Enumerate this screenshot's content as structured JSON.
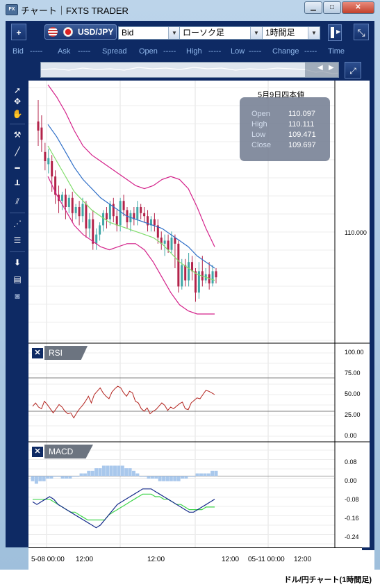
{
  "window": {
    "title": "チャート｜FXTS TRADER",
    "icon": "FX",
    "min_icon": "▁",
    "max_icon": "□",
    "close_icon": "✕"
  },
  "toolbar": {
    "add_label": "+",
    "pair": "USD/JPY",
    "price_type": "Bid",
    "chart_type": "ローソク足",
    "timeframe": "1時間足",
    "detach_icon": "⤡"
  },
  "quote_bar": {
    "bid_label": "Bid",
    "bid_value": "-----",
    "ask_label": "Ask",
    "ask_value": "-----",
    "spread_label": "Spread",
    "open_label": "Open",
    "open_value": "-----",
    "high_label": "High",
    "high_value": "-----",
    "low_label": "Low",
    "low_value": "-----",
    "change_label": "Change",
    "change_value": "-----",
    "time_label": "Time"
  },
  "main_chart": {
    "date_label": "5月9日四本値",
    "ohlc": {
      "open_label": "Open",
      "open": "110.097",
      "high_label": "High",
      "high": "110.111",
      "low_label": "Low",
      "low": "109.471",
      "close_label": "Close",
      "close": "109.697"
    },
    "y_label": "110.000"
  },
  "rsi_panel": {
    "label": "RSI",
    "close_icon": "✕",
    "ticks": [
      "100.00",
      "75.00",
      "50.00",
      "25.00",
      "0.00"
    ]
  },
  "macd_panel": {
    "label": "MACD",
    "close_icon": "✕",
    "ticks": [
      "0.08",
      "0.00",
      "-0.08",
      "-0.16",
      "-0.24"
    ]
  },
  "x_axis": {
    "ticks": [
      "5-08 00:00",
      "12:00",
      "12:00",
      "12:00",
      "05-11 00:00",
      "12:00"
    ]
  },
  "footer": "ドル/円チャート(1時間足)",
  "chart_data": [
    {
      "type": "candlestick",
      "panel": "price",
      "y_tick_label": "110.000",
      "candles": [
        [
          0.46,
          0.4,
          0.6,
          0.3
        ],
        [
          0.42,
          0.34,
          0.5,
          0.26
        ],
        [
          0.26,
          0.2,
          0.32,
          0.14
        ],
        [
          0.18,
          0.22,
          0.28,
          0.12
        ],
        [
          0.2,
          0.1,
          0.24,
          0.0
        ],
        [
          0.1,
          -0.02,
          0.14,
          -0.08
        ],
        [
          -0.02,
          -0.06,
          0.04,
          -0.14
        ],
        [
          -0.06,
          -0.02,
          0.0,
          -0.12
        ],
        [
          -0.02,
          -0.1,
          0.02,
          -0.18
        ],
        [
          -0.1,
          -0.04,
          -0.02,
          -0.14
        ],
        [
          -0.04,
          -0.14,
          0.0,
          -0.2
        ],
        [
          -0.14,
          -0.1,
          -0.08,
          -0.18
        ],
        [
          -0.1,
          -0.16,
          -0.06,
          -0.22
        ],
        [
          -0.16,
          -0.08,
          -0.04,
          -0.2
        ],
        [
          -0.08,
          -0.24,
          -0.06,
          -0.3
        ],
        [
          -0.24,
          -0.18,
          -0.14,
          -0.3
        ],
        [
          -0.18,
          -0.34,
          -0.12,
          -0.38
        ],
        [
          -0.34,
          -0.28,
          -0.24,
          -0.38
        ],
        [
          -0.28,
          -0.22,
          -0.2,
          -0.32
        ],
        [
          -0.22,
          -0.14,
          -0.12,
          -0.26
        ],
        [
          -0.14,
          -0.18,
          -0.1,
          -0.24
        ],
        [
          -0.18,
          -0.08,
          -0.06,
          -0.22
        ],
        [
          -0.08,
          -0.16,
          -0.04,
          -0.2
        ],
        [
          -0.16,
          -0.22,
          -0.12,
          -0.26
        ],
        [
          -0.22,
          -0.06,
          -0.04,
          -0.26
        ],
        [
          -0.06,
          -0.12,
          -0.02,
          -0.16
        ],
        [
          -0.12,
          -0.2,
          -0.1,
          -0.24
        ],
        [
          -0.2,
          -0.14,
          -0.12,
          -0.26
        ],
        [
          -0.14,
          -0.18,
          -0.1,
          -0.22
        ],
        [
          -0.18,
          -0.1,
          -0.06,
          -0.22
        ],
        [
          -0.1,
          -0.14,
          -0.08,
          -0.18
        ],
        [
          -0.14,
          -0.16,
          -0.1,
          -0.2
        ],
        [
          -0.16,
          -0.22,
          -0.12,
          -0.26
        ],
        [
          -0.22,
          -0.18,
          -0.16,
          -0.26
        ],
        [
          -0.18,
          -0.22,
          -0.14,
          -0.26
        ],
        [
          -0.22,
          -0.3,
          -0.18,
          -0.34
        ],
        [
          -0.3,
          -0.34,
          -0.26,
          -0.38
        ],
        [
          -0.34,
          -0.32,
          -0.28,
          -0.42
        ],
        [
          -0.32,
          -0.38,
          -0.28,
          -0.4
        ],
        [
          -0.38,
          -0.3,
          -0.26,
          -0.4
        ],
        [
          -0.3,
          -0.34,
          -0.28,
          -0.5
        ],
        [
          -0.34,
          -0.62,
          -0.32,
          -0.66
        ],
        [
          -0.62,
          -0.48,
          -0.44,
          -0.64
        ],
        [
          -0.48,
          -0.58,
          -0.44,
          -0.62
        ],
        [
          -0.58,
          -0.46,
          -0.4,
          -0.62
        ],
        [
          -0.46,
          -0.52,
          -0.42,
          -0.58
        ],
        [
          -0.52,
          -0.66,
          -0.5,
          -0.72
        ],
        [
          -0.66,
          -0.52,
          -0.46,
          -0.7
        ],
        [
          -0.52,
          -0.58,
          -0.42,
          -0.62
        ],
        [
          -0.58,
          -0.54,
          -0.5,
          -0.6
        ],
        [
          -0.54,
          -0.6,
          -0.46,
          -0.64
        ],
        [
          -0.6,
          -0.52,
          -0.48,
          -0.62
        ],
        [
          -0.52,
          -0.56,
          -0.5,
          -0.6
        ]
      ],
      "bands": {
        "upper": [
          0.7,
          0.62,
          0.52,
          0.4,
          0.3,
          0.24,
          0.2,
          0.16,
          0.12,
          0.08,
          0.04,
          0.02,
          0.04,
          0.08,
          0.1,
          0.08,
          0.02,
          -0.1,
          -0.24,
          -0.36
        ],
        "middle": [
          0.44,
          0.36,
          0.26,
          0.16,
          0.08,
          0.02,
          -0.04,
          -0.08,
          -0.12,
          -0.16,
          -0.18,
          -0.2,
          -0.22,
          -0.24,
          -0.28,
          -0.32,
          -0.36,
          -0.42,
          -0.46,
          -0.5
        ],
        "lower_inner": [
          0.3,
          0.2,
          0.1,
          0.0,
          -0.06,
          -0.12,
          -0.16,
          -0.2,
          -0.22,
          -0.24,
          -0.26,
          -0.28,
          -0.3,
          -0.34,
          -0.4,
          -0.46,
          -0.5,
          -0.54,
          -0.56,
          -0.58
        ],
        "lower": [
          0.1,
          -0.02,
          -0.12,
          -0.22,
          -0.28,
          -0.32,
          -0.36,
          -0.38,
          -0.36,
          -0.34,
          -0.34,
          -0.38,
          -0.46,
          -0.56,
          -0.66,
          -0.74,
          -0.78,
          -0.8,
          -0.8,
          -0.8
        ]
      }
    },
    {
      "type": "line",
      "panel": "RSI",
      "ylim": [
        0,
        100
      ],
      "levels": [
        70,
        30
      ],
      "values": [
        36,
        40,
        35,
        33,
        42,
        38,
        33,
        28,
        33,
        38,
        35,
        30,
        27,
        28,
        22,
        28,
        33,
        37,
        42,
        48,
        40,
        50,
        54,
        58,
        52,
        48,
        45,
        53,
        57,
        60,
        58,
        52,
        48,
        54,
        52,
        42,
        40,
        33,
        30,
        34,
        27,
        30,
        32,
        36,
        40,
        37,
        31,
        35,
        33,
        36,
        39,
        41,
        33,
        32,
        40,
        43,
        46,
        45,
        50,
        55,
        54,
        52,
        50
      ]
    },
    {
      "type": "bar+line",
      "panel": "MACD",
      "ylim": [
        -0.26,
        0.1
      ],
      "histogram": [
        -0.02,
        -0.03,
        -0.02,
        -0.02,
        -0.01,
        -0.01,
        0.0,
        0.0,
        -0.01,
        -0.01,
        -0.01,
        0.0,
        0.0,
        0.01,
        0.01,
        0.02,
        0.02,
        0.03,
        0.03,
        0.04,
        0.04,
        0.04,
        0.04,
        0.04,
        0.04,
        0.03,
        0.03,
        0.02,
        0.01,
        0.0,
        0.0,
        -0.01,
        -0.01,
        -0.01,
        -0.02,
        -0.02,
        -0.02,
        -0.02,
        -0.02,
        -0.02,
        -0.01,
        -0.01,
        0.0,
        0.0,
        0.01,
        0.01,
        0.01,
        0.01,
        0.02,
        0.02
      ],
      "macd": [
        -0.1,
        -0.11,
        -0.1,
        -0.09,
        -0.08,
        -0.09,
        -0.11,
        -0.12,
        -0.13,
        -0.14,
        -0.15,
        -0.16,
        -0.17,
        -0.18,
        -0.19,
        -0.2,
        -0.19,
        -0.17,
        -0.15,
        -0.13,
        -0.11,
        -0.1,
        -0.09,
        -0.08,
        -0.07,
        -0.06,
        -0.05,
        -0.05,
        -0.05,
        -0.06,
        -0.07,
        -0.08,
        -0.09,
        -0.1,
        -0.11,
        -0.12,
        -0.13,
        -0.14,
        -0.14,
        -0.13,
        -0.12,
        -0.11,
        -0.1,
        -0.09
      ],
      "signal": [
        -0.09,
        -0.09,
        -0.09,
        -0.09,
        -0.09,
        -0.1,
        -0.11,
        -0.12,
        -0.13,
        -0.14,
        -0.14,
        -0.15,
        -0.16,
        -0.17,
        -0.17,
        -0.17,
        -0.17,
        -0.17,
        -0.15,
        -0.14,
        -0.13,
        -0.12,
        -0.11,
        -0.1,
        -0.09,
        -0.08,
        -0.07,
        -0.07,
        -0.07,
        -0.08,
        -0.08,
        -0.09,
        -0.09,
        -0.1,
        -0.11,
        -0.11,
        -0.12,
        -0.13,
        -0.13,
        -0.13,
        -0.13,
        -0.12,
        -0.12,
        -0.12
      ]
    }
  ]
}
